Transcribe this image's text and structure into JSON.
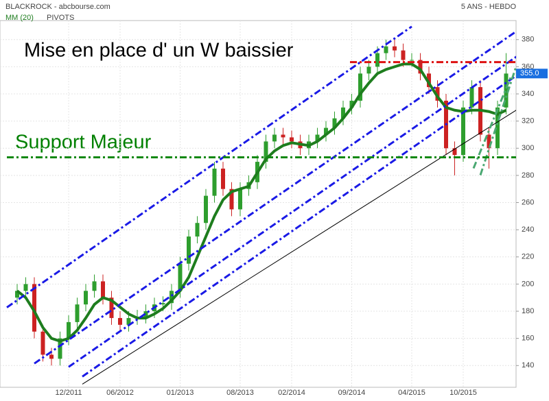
{
  "chart_data": {
    "type": "candlestick",
    "title": "BLACKROCK - abcbourse.com",
    "period": "5 ANS - HEBDO",
    "indicators": [
      "MM (20)",
      "PIVOTS"
    ],
    "annotations": [
      {
        "text": "Mise en place d' un W baissier",
        "color": "#000000"
      },
      {
        "text": "Support Majeur",
        "color": "#008000"
      }
    ],
    "categories": [
      null,
      null,
      null,
      null,
      null,
      null,
      "12/2011",
      null,
      null,
      null,
      null,
      null,
      "06/2012",
      null,
      null,
      null,
      null,
      null,
      null,
      "01/2013",
      null,
      null,
      null,
      null,
      null,
      null,
      "08/2013",
      null,
      null,
      null,
      null,
      null,
      "02/2014",
      null,
      null,
      null,
      null,
      null,
      null,
      "09/2014",
      null,
      null,
      null,
      null,
      null,
      null,
      "04/2015",
      null,
      null,
      null,
      null,
      null,
      "10/2015",
      null,
      null,
      null,
      null,
      null
    ],
    "series": [
      {
        "name": "BLACKROCK",
        "up_color": "#2e9e2e",
        "down_color": "#cc2222",
        "values": [
          [
            190,
            200,
            185,
            195
          ],
          [
            195,
            205,
            190,
            200
          ],
          [
            200,
            205,
            160,
            165
          ],
          [
            165,
            170,
            143,
            148
          ],
          [
            148,
            153,
            140,
            145
          ],
          [
            145,
            165,
            140,
            160
          ],
          [
            160,
            177,
            155,
            172
          ],
          [
            172,
            190,
            167,
            185
          ],
          [
            185,
            200,
            180,
            195
          ],
          [
            195,
            207,
            190,
            202
          ],
          [
            202,
            207,
            185,
            190
          ],
          [
            190,
            195,
            170,
            175
          ],
          [
            175,
            180,
            165,
            170
          ],
          [
            170,
            180,
            165,
            175
          ],
          [
            175,
            181,
            170,
            176
          ],
          [
            176,
            185,
            171,
            180
          ],
          [
            180,
            190,
            175,
            185
          ],
          [
            185,
            191,
            180,
            186
          ],
          [
            186,
            200,
            181,
            195
          ],
          [
            195,
            220,
            190,
            215
          ],
          [
            215,
            240,
            210,
            235
          ],
          [
            235,
            250,
            230,
            245
          ],
          [
            245,
            270,
            240,
            265
          ],
          [
            265,
            290,
            260,
            285
          ],
          [
            285,
            290,
            265,
            270
          ],
          [
            270,
            275,
            250,
            255
          ],
          [
            255,
            275,
            250,
            270
          ],
          [
            270,
            280,
            265,
            275
          ],
          [
            275,
            295,
            270,
            290
          ],
          [
            290,
            310,
            285,
            305
          ],
          [
            305,
            315,
            300,
            310
          ],
          [
            310,
            315,
            303,
            308
          ],
          [
            308,
            313,
            300,
            305
          ],
          [
            305,
            310,
            295,
            300
          ],
          [
            300,
            310,
            295,
            305
          ],
          [
            305,
            315,
            300,
            310
          ],
          [
            310,
            320,
            305,
            315
          ],
          [
            315,
            327,
            310,
            322
          ],
          [
            322,
            335,
            317,
            330
          ],
          [
            330,
            340,
            325,
            335
          ],
          [
            335,
            360,
            330,
            355
          ],
          [
            355,
            365,
            350,
            360
          ],
          [
            360,
            375,
            355,
            370
          ],
          [
            370,
            380,
            365,
            375
          ],
          [
            375,
            380,
            367,
            372
          ],
          [
            372,
            377,
            360,
            365
          ],
          [
            365,
            370,
            360,
            365
          ],
          [
            365,
            370,
            350,
            355
          ],
          [
            355,
            360,
            340,
            345
          ],
          [
            345,
            350,
            330,
            335
          ],
          [
            335,
            340,
            295,
            300
          ],
          [
            300,
            305,
            280,
            295
          ],
          [
            295,
            335,
            290,
            330
          ],
          [
            330,
            350,
            325,
            345
          ],
          [
            345,
            350,
            305,
            310
          ],
          [
            310,
            315,
            285,
            300
          ],
          [
            300,
            335,
            295,
            330
          ],
          [
            330,
            370,
            325,
            355
          ]
        ]
      },
      {
        "name": "MM (20)",
        "color": "#1e7d1e",
        "values": [
          195,
          190,
          180,
          168,
          160,
          158,
          160,
          166,
          175,
          185,
          190,
          188,
          183,
          178,
          175,
          175,
          178,
          182,
          188,
          195,
          205,
          220,
          235,
          250,
          262,
          268,
          270,
          272,
          282,
          292,
          298,
          302,
          304,
          303,
          302,
          305,
          310,
          315,
          322,
          330,
          340,
          348,
          355,
          358,
          360,
          362,
          362,
          358,
          348,
          338,
          330,
          328,
          327,
          328,
          328,
          327,
          325,
          328
        ]
      }
    ],
    "trend_lines": [
      {
        "x": [
          -1.2,
          46
        ],
        "y": [
          182.8,
          389.6
        ],
        "color": "#1a1ae6"
      },
      {
        "x": [
          2,
          58.2
        ],
        "y": [
          141.5,
          386.1
        ],
        "color": "#1a1ae6"
      },
      {
        "x": [
          6,
          58.2
        ],
        "y": [
          139,
          367.4
        ],
        "color": "#1a1ae6"
      },
      {
        "x": [
          7.6,
          58.2
        ],
        "y": [
          131.9,
          353.5
        ],
        "color": "#1a1ae6"
      },
      {
        "x": [
          7.6,
          58.2
        ],
        "y": [
          126.3,
          328.1
        ],
        "color": "#000000"
      },
      {
        "x": [
          54,
          58.2
        ],
        "y": [
          280.2,
          360.8
        ],
        "color": "#4aa872"
      },
      {
        "x": [
          53.2,
          57.6
        ],
        "y": [
          285.2,
          353.3
        ],
        "color": "#4aa872"
      }
    ],
    "levels": [
      {
        "y": 293.3,
        "x": [
          -1.2,
          58.2
        ],
        "color": "#118811"
      },
      {
        "y": 363.4,
        "x": [
          38.8,
          58.2
        ],
        "color": "#dd1111"
      }
    ],
    "last_price": {
      "value": 355,
      "label": "355.0"
    },
    "ylim": [
      124,
      394
    ],
    "yticks": [
      140,
      160,
      180,
      200,
      220,
      240,
      260,
      280,
      300,
      320,
      340,
      360,
      380
    ],
    "grid": true
  }
}
